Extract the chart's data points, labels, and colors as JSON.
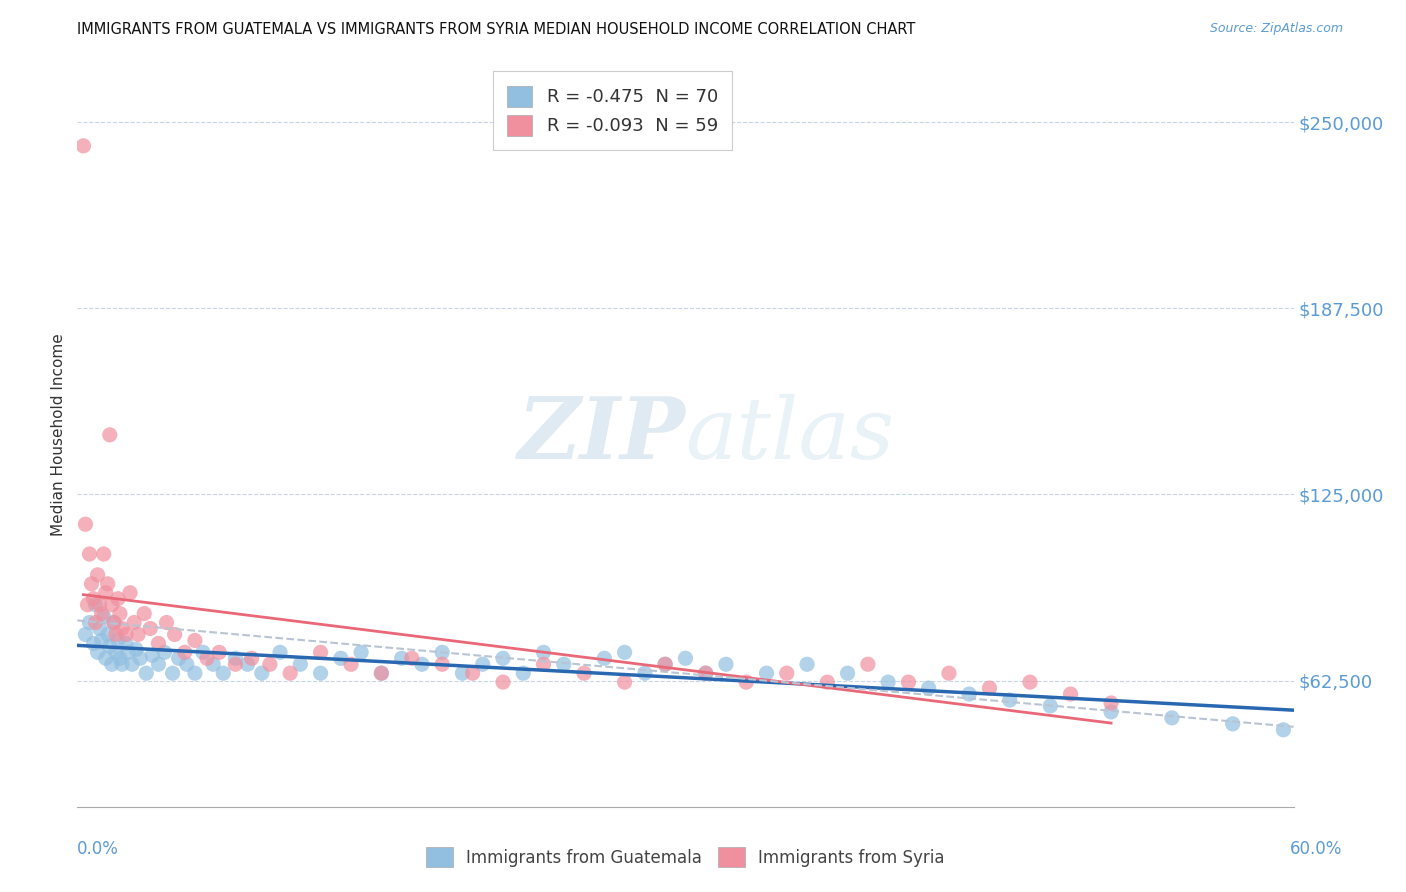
{
  "title": "IMMIGRANTS FROM GUATEMALA VS IMMIGRANTS FROM SYRIA MEDIAN HOUSEHOLD INCOME CORRELATION CHART",
  "source": "Source: ZipAtlas.com",
  "ylabel": "Median Household Income",
  "y_ticks": [
    62500,
    125000,
    187500,
    250000
  ],
  "y_tick_labels": [
    "$62,500",
    "$125,000",
    "$187,500",
    "$250,000"
  ],
  "y_min": 20000,
  "y_max": 270000,
  "x_min": 0.0,
  "x_max": 0.6,
  "watermark_zip": "ZIP",
  "watermark_atlas": "atlas",
  "guatemala_color": "#92bfe0",
  "syria_color": "#f0909e",
  "guatemala_line_color": "#2968b0",
  "syria_line_color": "#e86878",
  "gray_dash_color": "#b8c4d4",
  "guatemala_R": -0.475,
  "guatemala_N": 70,
  "syria_R": -0.093,
  "syria_N": 59,
  "legend_label_g": "Immigrants from Guatemala",
  "legend_label_s": "Immigrants from Syria",
  "guatemala_x": [
    0.004,
    0.006,
    0.008,
    0.009,
    0.01,
    0.011,
    0.012,
    0.013,
    0.014,
    0.015,
    0.016,
    0.017,
    0.018,
    0.019,
    0.02,
    0.021,
    0.022,
    0.024,
    0.025,
    0.027,
    0.029,
    0.031,
    0.034,
    0.037,
    0.04,
    0.043,
    0.047,
    0.05,
    0.054,
    0.058,
    0.062,
    0.067,
    0.072,
    0.078,
    0.084,
    0.091,
    0.1,
    0.11,
    0.12,
    0.13,
    0.14,
    0.15,
    0.16,
    0.17,
    0.18,
    0.19,
    0.2,
    0.21,
    0.22,
    0.23,
    0.24,
    0.26,
    0.27,
    0.28,
    0.29,
    0.3,
    0.31,
    0.32,
    0.34,
    0.36,
    0.38,
    0.4,
    0.42,
    0.44,
    0.46,
    0.48,
    0.51,
    0.54,
    0.57,
    0.595
  ],
  "guatemala_y": [
    78000,
    82000,
    75000,
    88000,
    72000,
    80000,
    76000,
    84000,
    70000,
    78000,
    74000,
    68000,
    82000,
    72000,
    76000,
    70000,
    68000,
    75000,
    72000,
    68000,
    73000,
    70000,
    65000,
    71000,
    68000,
    72000,
    65000,
    70000,
    68000,
    65000,
    72000,
    68000,
    65000,
    70000,
    68000,
    65000,
    72000,
    68000,
    65000,
    70000,
    72000,
    65000,
    70000,
    68000,
    72000,
    65000,
    68000,
    70000,
    65000,
    72000,
    68000,
    70000,
    72000,
    65000,
    68000,
    70000,
    65000,
    68000,
    65000,
    68000,
    65000,
    62000,
    60000,
    58000,
    56000,
    54000,
    52000,
    50000,
    48000,
    46000
  ],
  "syria_x": [
    0.003,
    0.004,
    0.005,
    0.006,
    0.007,
    0.008,
    0.009,
    0.01,
    0.011,
    0.012,
    0.013,
    0.014,
    0.015,
    0.016,
    0.017,
    0.018,
    0.019,
    0.02,
    0.021,
    0.022,
    0.024,
    0.026,
    0.028,
    0.03,
    0.033,
    0.036,
    0.04,
    0.044,
    0.048,
    0.053,
    0.058,
    0.064,
    0.07,
    0.078,
    0.086,
    0.095,
    0.105,
    0.12,
    0.135,
    0.15,
    0.165,
    0.18,
    0.195,
    0.21,
    0.23,
    0.25,
    0.27,
    0.29,
    0.31,
    0.33,
    0.35,
    0.37,
    0.39,
    0.41,
    0.43,
    0.45,
    0.47,
    0.49,
    0.51
  ],
  "syria_y": [
    242000,
    115000,
    88000,
    105000,
    95000,
    90000,
    82000,
    98000,
    88000,
    85000,
    105000,
    92000,
    95000,
    145000,
    88000,
    82000,
    78000,
    90000,
    85000,
    80000,
    78000,
    92000,
    82000,
    78000,
    85000,
    80000,
    75000,
    82000,
    78000,
    72000,
    76000,
    70000,
    72000,
    68000,
    70000,
    68000,
    65000,
    72000,
    68000,
    65000,
    70000,
    68000,
    65000,
    62000,
    68000,
    65000,
    62000,
    68000,
    65000,
    62000,
    65000,
    62000,
    68000,
    62000,
    65000,
    60000,
    62000,
    58000,
    55000
  ]
}
